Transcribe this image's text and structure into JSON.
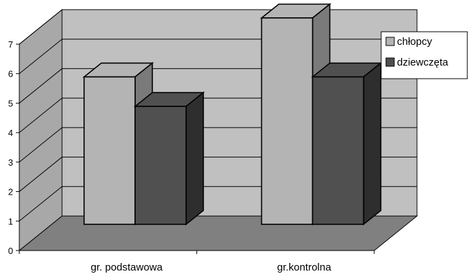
{
  "chart_data": {
    "type": "bar",
    "style": "3d-clustered-column",
    "title": "",
    "xlabel": "",
    "ylabel": "",
    "categories": [
      "gr. podstawowa",
      "gr.kontrolna"
    ],
    "series": [
      {
        "name": "chłopcy",
        "values": [
          5,
          7
        ],
        "color": "#b4b4b4"
      },
      {
        "name": "dziewczęta",
        "values": [
          4,
          5
        ],
        "color": "#505050"
      }
    ],
    "ylim": [
      0,
      7
    ],
    "yticks": [
      "0",
      "1",
      "2",
      "3",
      "4",
      "5",
      "6",
      "7"
    ],
    "grid": true,
    "legend": "right",
    "colors": {
      "back_wall": "#c0c0c0",
      "side_wall": "#a8a8a8",
      "floor": "#808080",
      "gridline": "#000000"
    }
  }
}
